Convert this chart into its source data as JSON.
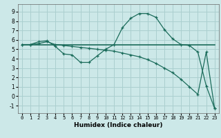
{
  "xlabel": "Humidex (Indice chaleur)",
  "background_color": "#cce8e8",
  "grid_color": "#aacfcf",
  "line_color": "#1a6b5a",
  "xlim": [
    -0.5,
    23.5
  ],
  "ylim": [
    -1.8,
    9.8
  ],
  "xticks": [
    0,
    1,
    2,
    3,
    4,
    5,
    6,
    7,
    8,
    9,
    10,
    11,
    12,
    13,
    14,
    15,
    16,
    17,
    18,
    19,
    20,
    21,
    22,
    23
  ],
  "yticks": [
    -1,
    0,
    1,
    2,
    3,
    4,
    5,
    6,
    7,
    8,
    9
  ],
  "curve1_x": [
    0,
    1,
    2,
    3,
    4,
    5,
    6,
    7,
    8,
    9,
    10,
    11,
    12,
    13,
    14,
    15,
    16,
    17,
    18,
    19,
    20,
    21,
    22,
    23
  ],
  "curve1_y": [
    5.5,
    5.5,
    5.8,
    5.9,
    5.3,
    4.5,
    4.4,
    3.6,
    3.6,
    4.3,
    5.0,
    5.5,
    7.3,
    8.3,
    8.8,
    8.8,
    8.4,
    7.1,
    6.1,
    5.5,
    5.4,
    4.7,
    1.1,
    -1.3
  ],
  "curve2_x": [
    0,
    23
  ],
  "curve2_y": [
    5.5,
    5.5
  ],
  "curve3_x": [
    0,
    1,
    2,
    3,
    4,
    5,
    6,
    7,
    8,
    9,
    10,
    11,
    12,
    13,
    14,
    15,
    16,
    17,
    18,
    19,
    20,
    21,
    22,
    23
  ],
  "curve3_y": [
    5.5,
    5.5,
    5.6,
    5.8,
    5.5,
    5.4,
    5.3,
    5.2,
    5.1,
    5.0,
    4.9,
    4.8,
    4.6,
    4.4,
    4.2,
    3.9,
    3.5,
    3.0,
    2.5,
    1.8,
    1.0,
    0.2,
    4.7,
    -1.3
  ]
}
